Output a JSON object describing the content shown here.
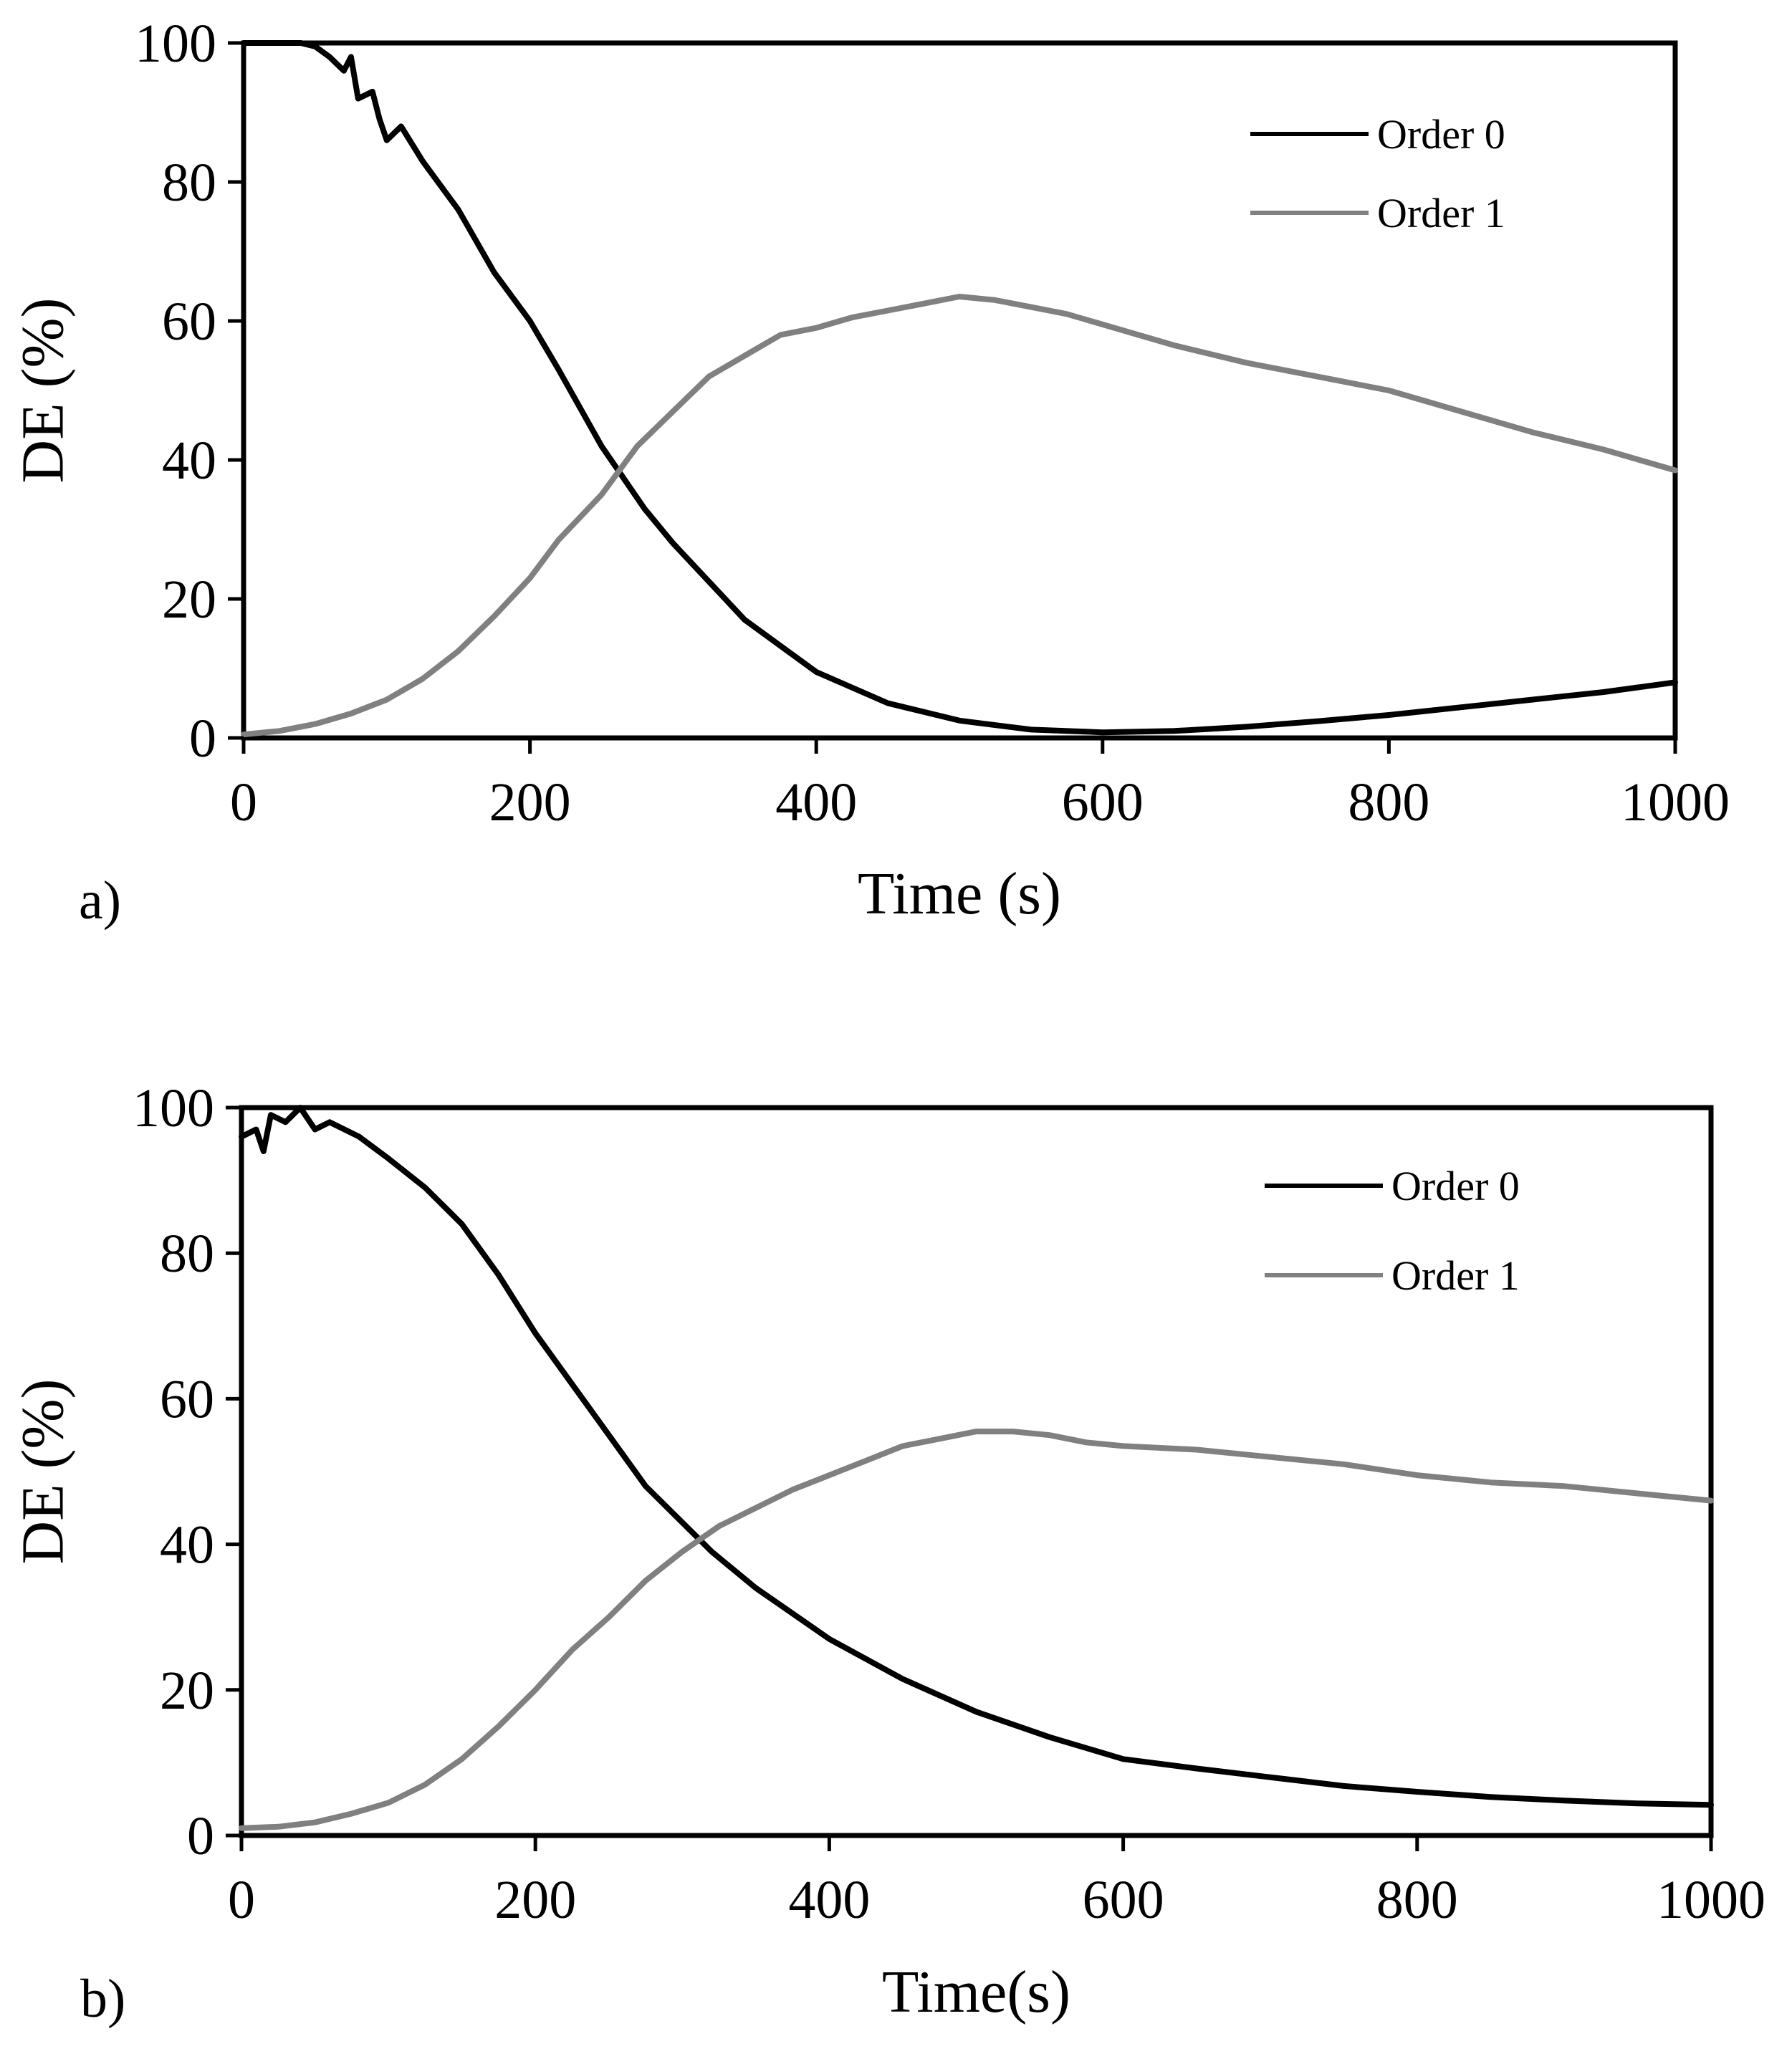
{
  "colors": {
    "order0": "#000000",
    "order1": "#808080",
    "frame": "#000000"
  },
  "chart_data": [
    {
      "type": "line",
      "panel_label": "a)",
      "xlabel": "Time (s)",
      "ylabel": "DE (%)",
      "xlim": [
        0,
        1000
      ],
      "ylim": [
        0,
        100
      ],
      "xticks": [
        "0",
        "200",
        "400",
        "600",
        "800",
        "1000"
      ],
      "yticks": [
        "0",
        "20",
        "40",
        "60",
        "80",
        "100"
      ],
      "legend_position": "top-right",
      "series": [
        {
          "name": "Order 0",
          "color": "#000000",
          "x": [
            0,
            20,
            40,
            50,
            60,
            70,
            75,
            80,
            90,
            95,
            100,
            110,
            125,
            150,
            175,
            200,
            220,
            250,
            280,
            300,
            350,
            400,
            450,
            500,
            550,
            600,
            650,
            700,
            750,
            800,
            850,
            900,
            950,
            1000
          ],
          "y": [
            100,
            100,
            100,
            99.5,
            98,
            96,
            98,
            92,
            93,
            89,
            86,
            88,
            83,
            76,
            67,
            60,
            53,
            42,
            33,
            28,
            17,
            9.5,
            5,
            2.5,
            1.2,
            0.8,
            1,
            1.6,
            2.4,
            3.3,
            4.4,
            5.5,
            6.6,
            8
          ]
        },
        {
          "name": "Order 1",
          "color": "#808080",
          "x": [
            0,
            25,
            50,
            75,
            100,
            125,
            150,
            175,
            200,
            220,
            250,
            275,
            300,
            325,
            350,
            375,
            400,
            425,
            450,
            475,
            500,
            525,
            550,
            575,
            600,
            650,
            700,
            750,
            800,
            850,
            900,
            950,
            1000
          ],
          "y": [
            0.5,
            1,
            2,
            3.5,
            5.5,
            8.5,
            12.5,
            17.5,
            23,
            28.5,
            35,
            42,
            47,
            52,
            55,
            58,
            59,
            60.5,
            61.5,
            62.5,
            63.5,
            63,
            62,
            61,
            59.5,
            56.5,
            54,
            52,
            50,
            47,
            44,
            41.5,
            38.5
          ]
        }
      ]
    },
    {
      "type": "line",
      "panel_label": "b)",
      "xlabel": "Time(s)",
      "ylabel": "DE (%)",
      "xlim": [
        0,
        1000
      ],
      "ylim": [
        0,
        100
      ],
      "xticks": [
        "0",
        "200",
        "400",
        "600",
        "800",
        "1000"
      ],
      "yticks": [
        "0",
        "20",
        "40",
        "60",
        "80",
        "100"
      ],
      "legend_position": "top-right",
      "series": [
        {
          "name": "Order 0",
          "color": "#000000",
          "x": [
            0,
            10,
            15,
            20,
            30,
            40,
            50,
            60,
            80,
            100,
            125,
            150,
            175,
            200,
            225,
            250,
            275,
            300,
            320,
            350,
            400,
            450,
            500,
            550,
            600,
            650,
            700,
            750,
            800,
            850,
            900,
            950,
            1000
          ],
          "y": [
            96,
            97,
            94,
            99,
            98,
            100,
            97,
            98,
            96,
            93,
            89,
            84,
            77,
            69,
            62,
            55,
            48,
            43,
            39,
            34,
            27,
            21.5,
            17,
            13.5,
            10.5,
            9.2,
            8,
            6.8,
            6,
            5.3,
            4.8,
            4.4,
            4.2
          ]
        },
        {
          "name": "Order 1",
          "color": "#808080",
          "x": [
            0,
            25,
            50,
            75,
            100,
            125,
            150,
            175,
            200,
            225,
            250,
            275,
            300,
            325,
            350,
            375,
            400,
            425,
            450,
            475,
            500,
            525,
            550,
            575,
            600,
            650,
            700,
            750,
            800,
            850,
            900,
            950,
            1000
          ],
          "y": [
            1,
            1.2,
            1.8,
            3,
            4.5,
            7,
            10.5,
            15,
            20,
            25.5,
            30,
            35,
            39,
            42.5,
            45,
            47.5,
            49.5,
            51.5,
            53.5,
            54.5,
            55.5,
            55.5,
            55,
            54,
            53.5,
            53,
            52,
            51,
            49.5,
            48.5,
            48,
            47,
            46
          ]
        }
      ]
    }
  ]
}
